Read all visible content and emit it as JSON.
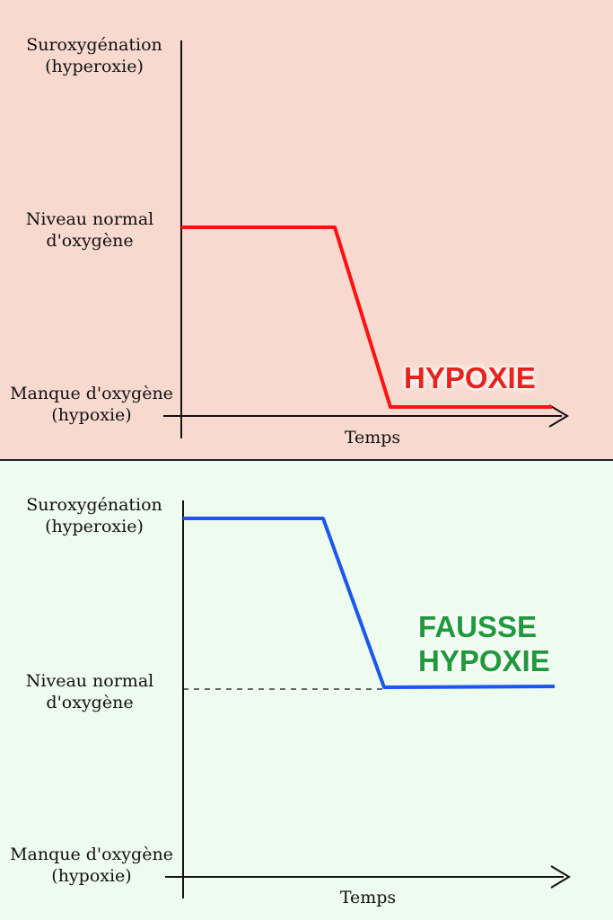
{
  "top_panel": {
    "y_label_high": [
      "Suroxygénation",
      "(hyperoxie)"
    ],
    "y_label_normal": [
      "Niveau normal",
      "d'oxygène"
    ],
    "y_label_low": [
      "Manque d'oxygène",
      "(hypoxie)"
    ],
    "x_label": "Temps",
    "annotation": "HYPOXIE",
    "background": "#f8d9cf",
    "line_color": "#ff1010",
    "annotation_color": "#e8231e"
  },
  "bottom_panel": {
    "y_label_high": [
      "Suroxygénation",
      "(hyperoxie)"
    ],
    "y_label_normal": [
      "Niveau normal",
      "d'oxygène"
    ],
    "y_label_low": [
      "Manque d'oxygène",
      "(hypoxie)"
    ],
    "x_label": "Temps",
    "annotation": [
      "FAUSSE",
      "HYPOXIE"
    ],
    "background": "#eefbef",
    "line_color": "#1a56f0",
    "annotation_color": "#1f9a3a"
  }
}
